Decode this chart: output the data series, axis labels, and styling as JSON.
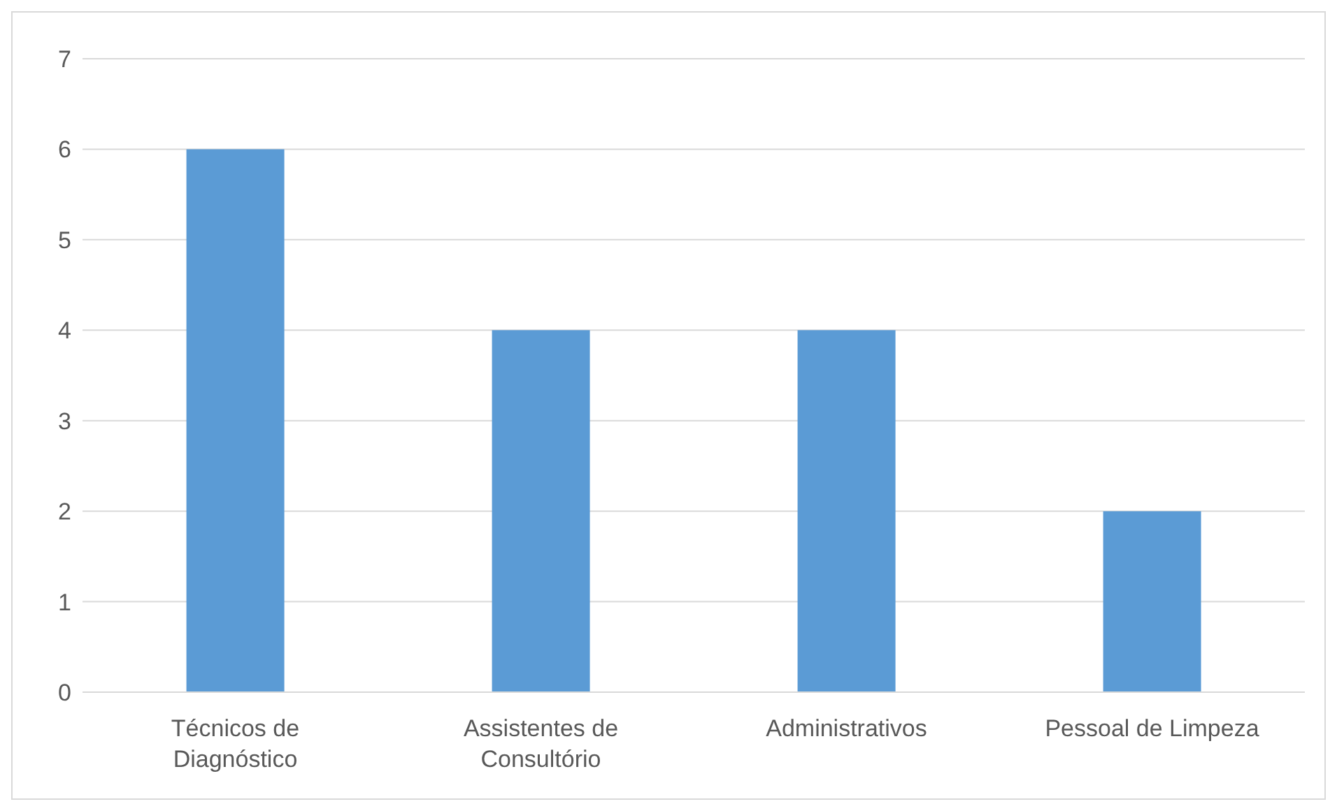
{
  "chart_data": {
    "type": "bar",
    "categories": [
      "Técnicos de Diagnóstico",
      "Assistentes de Consultório",
      "Administrativos",
      "Pessoal de Limpeza"
    ],
    "values": [
      6,
      4,
      4,
      2
    ],
    "color": "#5b9bd5",
    "ylim": [
      0,
      7
    ],
    "yticks": [
      0,
      1,
      2,
      3,
      4,
      5,
      6,
      7
    ],
    "grid": "y",
    "legend": false
  }
}
